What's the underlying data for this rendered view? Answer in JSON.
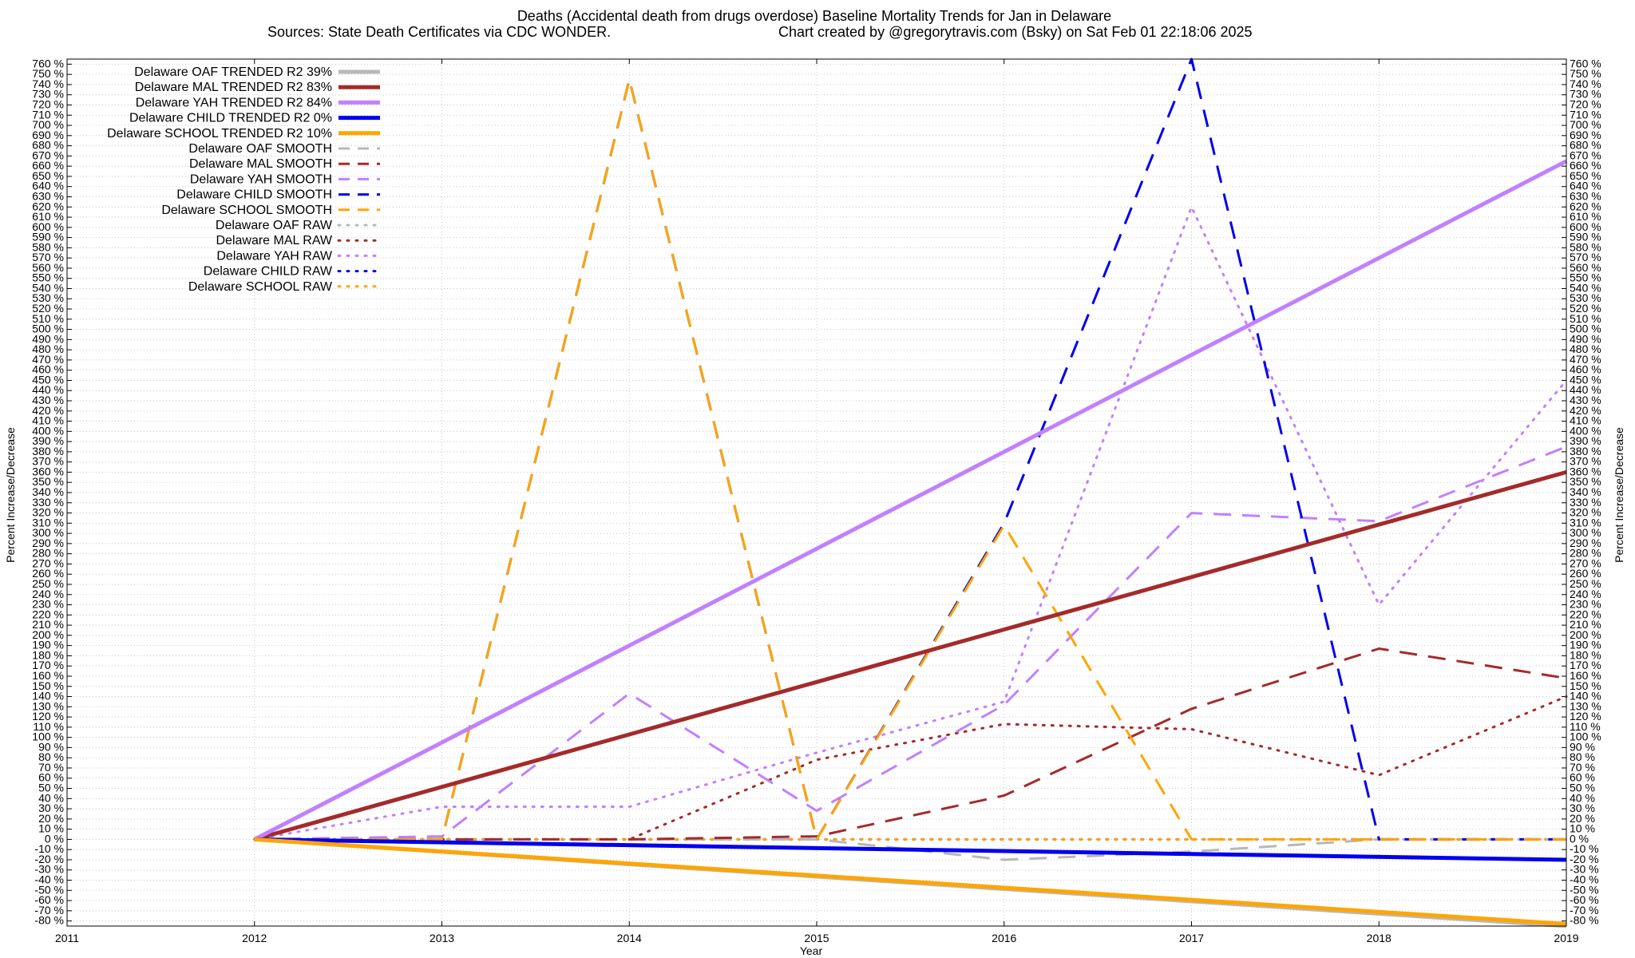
{
  "chart_data": {
    "type": "line",
    "title": "Deaths (Accidental death from drugs overdose)  Baseline Mortality Trends for Jan in Delaware",
    "subtitle_left": "Sources: State Death Certificates via CDC WONDER.",
    "subtitle_right": "Chart created by @gregorytravis.com (Bsky) on Sat Feb 01 22:18:06 2025",
    "xlabel": "Year",
    "ylabel_left": "Percent Increase/Decrease",
    "ylabel_right": "Percent Increase/Decrease",
    "xlim": [
      2011,
      2019
    ],
    "ylim": [
      -85,
      765
    ],
    "y_ticks_from": -80,
    "y_ticks_to": 760,
    "y_tick_step": 10,
    "y_tick_suffix": " %",
    "x_ticks": [
      2011,
      2012,
      2013,
      2014,
      2015,
      2016,
      2017,
      2018,
      2019
    ],
    "grid": true,
    "legend_position": "top-left",
    "series": [
      {
        "name": "Delaware OAF TRENDED R2  39%",
        "style": "solid",
        "color": "#b8b8b8",
        "x": [
          2012,
          2019
        ],
        "y": [
          0,
          -85
        ]
      },
      {
        "name": "Delaware MAL TRENDED R2  83%",
        "style": "solid",
        "color": "#a52a2a",
        "x": [
          2012,
          2019
        ],
        "y": [
          0,
          360
        ]
      },
      {
        "name": "Delaware YAH TRENDED R2  84%",
        "style": "solid",
        "color": "#c080ff",
        "x": [
          2012,
          2019
        ],
        "y": [
          0,
          665
        ]
      },
      {
        "name": "Delaware CHILD TRENDED R2   0%",
        "style": "solid",
        "color": "#0000ee",
        "x": [
          2012,
          2019
        ],
        "y": [
          0,
          -20
        ]
      },
      {
        "name": "Delaware SCHOOL TRENDED R2  10%",
        "style": "solid",
        "color": "#ffa500",
        "x": [
          2012,
          2019
        ],
        "y": [
          0,
          -83
        ]
      },
      {
        "name": "Delaware OAF SMOOTH",
        "style": "dashed",
        "color": "#b8b8b8",
        "x": [
          2012,
          2013,
          2014,
          2015,
          2016,
          2017,
          2018,
          2019
        ],
        "y": [
          0,
          0,
          0,
          0,
          -20,
          -12,
          0,
          0
        ]
      },
      {
        "name": "Delaware MAL SMOOTH",
        "style": "dashed",
        "color": "#a52a2a",
        "x": [
          2012,
          2013,
          2014,
          2015,
          2016,
          2017,
          2018,
          2019
        ],
        "y": [
          0,
          0,
          0,
          3,
          43,
          128,
          187,
          158
        ]
      },
      {
        "name": "Delaware YAH SMOOTH",
        "style": "dashed",
        "color": "#c080ff",
        "x": [
          2012,
          2013,
          2014,
          2015,
          2016,
          2017,
          2018,
          2019
        ],
        "y": [
          0,
          3,
          143,
          28,
          132,
          320,
          312,
          385
        ]
      },
      {
        "name": "Delaware CHILD SMOOTH",
        "style": "dashed",
        "color": "#0000ee",
        "x": [
          2012,
          2013,
          2014,
          2015,
          2016,
          2017,
          2018,
          2019
        ],
        "y": [
          0,
          0,
          745,
          0,
          310,
          765,
          0,
          0
        ]
      },
      {
        "name": "Delaware SCHOOL SMOOTH",
        "style": "dashed",
        "color": "#ffa500",
        "x": [
          2012,
          2013,
          2014,
          2015,
          2016,
          2017,
          2018,
          2019
        ],
        "y": [
          0,
          0,
          745,
          0,
          308,
          0,
          0,
          0
        ]
      },
      {
        "name": "Delaware OAF RAW",
        "style": "dotted",
        "color": "#b8b8b8",
        "x": [
          2012,
          2013,
          2014,
          2015,
          2016,
          2017,
          2018,
          2019
        ],
        "y": [
          0,
          0,
          0,
          0,
          0,
          0,
          0,
          0
        ]
      },
      {
        "name": "Delaware MAL RAW",
        "style": "dotted",
        "color": "#a52a2a",
        "x": [
          2012,
          2013,
          2014,
          2015,
          2016,
          2017,
          2018,
          2019
        ],
        "y": [
          0,
          0,
          0,
          78,
          113,
          108,
          63,
          140
        ]
      },
      {
        "name": "Delaware YAH RAW",
        "style": "dotted",
        "color": "#c080ff",
        "x": [
          2012,
          2013,
          2014,
          2015,
          2016,
          2017,
          2018,
          2019
        ],
        "y": [
          0,
          32,
          32,
          85,
          135,
          620,
          230,
          450
        ]
      },
      {
        "name": "Delaware CHILD RAW",
        "style": "dotted",
        "color": "#0000ee",
        "x": [
          2012,
          2019
        ],
        "y": [
          0,
          0
        ]
      },
      {
        "name": "Delaware SCHOOL RAW",
        "style": "dotted",
        "color": "#ffa500",
        "x": [
          2012,
          2019
        ],
        "y": [
          0,
          0
        ]
      }
    ]
  }
}
